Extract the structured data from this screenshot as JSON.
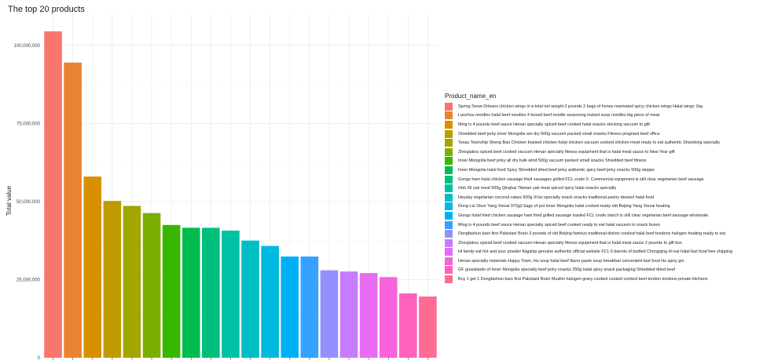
{
  "chart_data": {
    "type": "bar",
    "title": "The top 20 products",
    "ylabel": "Total value",
    "xlabel": "",
    "ylim": [
      0,
      110000000
    ],
    "yticks": [
      0,
      25000000,
      50000000,
      75000000,
      100000000
    ],
    "ytick_labels": [
      "0",
      "25,000,000",
      "50,000,000",
      "75,000,000",
      "100,000,000"
    ],
    "grid": true,
    "legend_title": "Product_name_en",
    "legend_position": "right",
    "categories": [
      "Spring Snow Orleans chicken wings in a total net weight 2 pounds 2 bags of honey marinated spicy chicken wings Halal wings 1kg",
      "Lanzhou noodles halal beef noodles 4 boxed beef noodle seasoning instant soup noodles big piece of meat",
      "Ming is 4 pounds beef sauce Henan specialty spiced beef cooked halal snacks stocking vacuum to gift",
      "Shredded beef jerky Inner Mongolia are dry 500g vacuum packed small snacks Fitness pregnant beef office",
      "Texas Township Sheng Bao Chicken braised chicken halal chicken vacuum cooked chicken meat ready to eat authentic Shandong specialty",
      "Zhoujiakou spiced beef cooked vacuum Henan specialty fitness equipment that is halal meat sauce to New Year gift",
      "Inner Mongolia beef jerky all dry bulk wind 500g vacuum packed small snacks Shredded beef fitness",
      "Inner Mongolia halal food Spicy Shredded dried beef jerky authentic spicy beef jerky snacks 500g steppe",
      "Gongs ham halal chicken sausage fried sausages grilled FCL crude 0. Commercial equipment is still clear vegetarian beef sausage",
      "Hoh Xil yak meat 500g Qinghai Tibetan yak meat spiced spicy halal snacks specialty",
      "Heyday vegetarian coconut cakes 500g Xi'an specialty snack snacks traditional pastry dessert halal food",
      "Dong Lai Shun Yang Xiezai 970g2 bags of pot Inner Mongolia halal cooked ready-old Beijing Yang Xiezai heating",
      "Gongs halal fried chicken sausage ham fried grilled sausage loaded FCL crude starch is still clear vegetarian beef sausage wholesale",
      "Ming is 4 pounds beef sauce Henan specialty spiced beef cooked ready to eat halal vacuum to snack boxes",
      "Dongfashun bars first Pakistani Brain 3 pounds of old Beijing famous traditional dishes cooked halal beef tendons halogen heating ready to eat",
      "Zhoujiakou spiced beef cooked vacuum Henan specialty fitness equipment that is halal meat sauce 2 pounds to gift box",
      "Hi family eat hot and sour powder flagship genuine authentic official website FCL 6 barrels of bottled Chongqing Hi eat halal fast food free shipping",
      "Henan specialty materials Happy Town, Hu soup halal beef flavor paste soup breakfast convenient fast food Hu spicy gin",
      "GF grasslands of Inner Mongolia specialty beef jerky snacks 250g halal spicy snack packaging Shredded dried beef",
      "Buy 1 get 1 Dongfashun bars first Pakistani Brain Muslim halogen gravy cooked cooked cooked beef tendon tendons private kitchens"
    ],
    "values": [
      104500000,
      94500000,
      58000000,
      50200000,
      48600000,
      46300000,
      42500000,
      41600000,
      41600000,
      40700000,
      37500000,
      35800000,
      32400000,
      32400000,
      28000000,
      27600000,
      27100000,
      25800000,
      20600000,
      19600000
    ],
    "colors": [
      "#F8766D",
      "#EA8331",
      "#D89000",
      "#C09B00",
      "#A3A500",
      "#7CAE00",
      "#39B600",
      "#00BB4E",
      "#00BF7D",
      "#00C1A3",
      "#00BFC4",
      "#00BAE0",
      "#00B0F6",
      "#35A2FF",
      "#9590FF",
      "#C77CFF",
      "#E76BF3",
      "#FA62DB",
      "#FF62BC",
      "#FF6C91"
    ]
  }
}
